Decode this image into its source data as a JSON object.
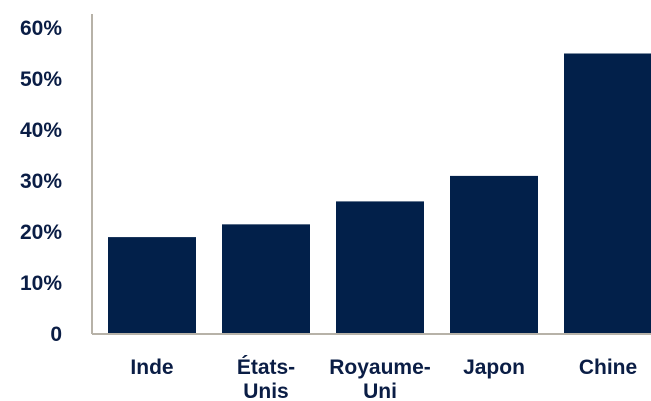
{
  "chart_data": {
    "type": "bar",
    "categories": [
      [
        "Inde"
      ],
      [
        "États-",
        "Unis"
      ],
      [
        "Royaume-",
        "Uni"
      ],
      [
        "Japon"
      ],
      [
        "Chine"
      ]
    ],
    "values": [
      19,
      21.5,
      26,
      31,
      55
    ],
    "ylim": [
      0,
      60
    ],
    "y_ticks": [
      {
        "value": 0,
        "label": "0"
      },
      {
        "value": 10,
        "label": "10%"
      },
      {
        "value": 20,
        "label": "20%"
      },
      {
        "value": 30,
        "label": "30%"
      },
      {
        "value": 40,
        "label": "40%"
      },
      {
        "value": 50,
        "label": "50%"
      },
      {
        "value": 60,
        "label": "60%"
      }
    ],
    "grid": false,
    "title": "",
    "xlabel": "",
    "ylabel": "",
    "colors": {
      "bar": "#02204a",
      "axis": "#b7b2a8",
      "text": "#0a1d45"
    }
  }
}
